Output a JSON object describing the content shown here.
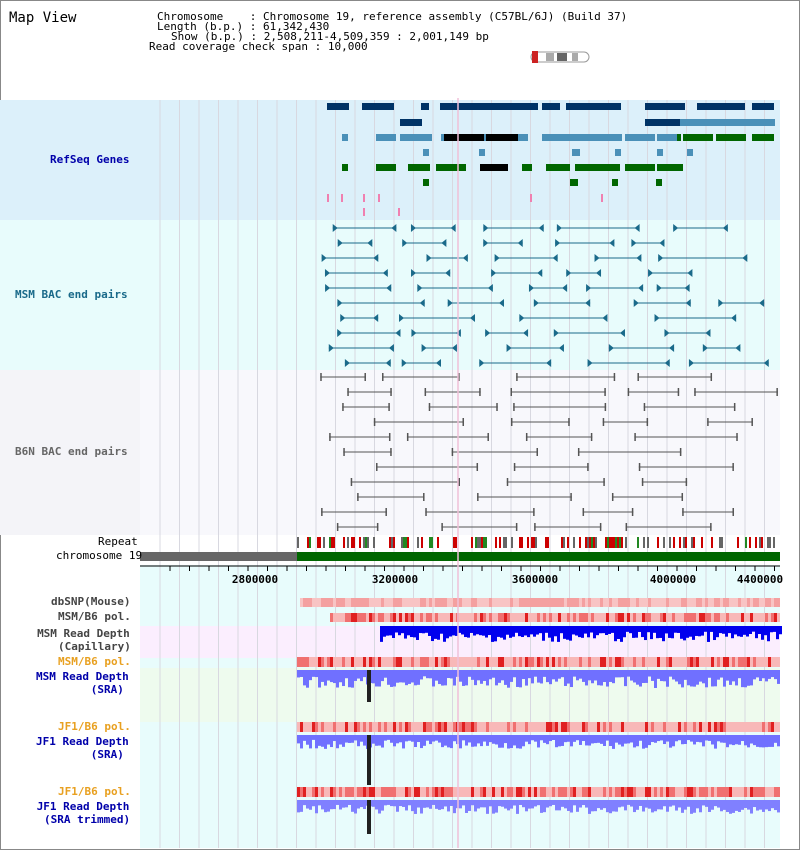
{
  "header": {
    "title": "Map View",
    "chromosome_label": "Chromosome",
    "chromosome_value": "Chromosome 19, reference assembly (C57BL/6J) (Build 37)",
    "length_label": "Length (b.p.)",
    "length_value": "61,342,430",
    "show_label": "Show (b.p.)",
    "show_value": "2,508,211-4,509,359 : 2,001,149 bp",
    "span_label": "Read coverage check span",
    "span_value": "10,000"
  },
  "tracks": {
    "refseq": "RefSeq Genes",
    "msm_bac": "MSM BAC end pairs",
    "b6n_bac": "B6N BAC end pairs",
    "repeat": "Repeat",
    "chromosome": "chromosome 19",
    "dbsnp": "dbSNP(Mouse)",
    "msm_b6_pol": "MSM/B6 pol.",
    "msm_read_depth_cap": [
      "MSM Read Depth",
      "(Capillary)"
    ],
    "msm_b6_pol2": "MSM/B6 pol.",
    "msm_read_depth_sra": [
      "MSM Read Depth",
      "(SRA)"
    ],
    "jf1_b6_pol": "JF1/B6 pol.",
    "jf1_read_depth_sra": [
      "JF1 Read Depth",
      "(SRA)"
    ],
    "jf1_b6_pol2": "JF1/B6 pol.",
    "jf1_read_depth_trim": [
      "JF1 Read Depth",
      "(SRA trimmed)"
    ]
  },
  "axis": {
    "ticks": [
      "2800000",
      "3200000",
      "3600000",
      "4000000",
      "4400000"
    ]
  },
  "colors": {
    "refseq_bg": "#dcf0fa",
    "bac_bg": "#e8fcfc",
    "b6n_bg": "#f4f4f8",
    "gene_dark": "#003366",
    "gene_mid": "#4a90b8",
    "gene_green": "#006600",
    "msm_line": "#1a6a8a",
    "b6n_line": "#555555",
    "depth_blue": "#0000ee",
    "depth_light": "#7070ff",
    "pol_red": "#e03030"
  }
}
